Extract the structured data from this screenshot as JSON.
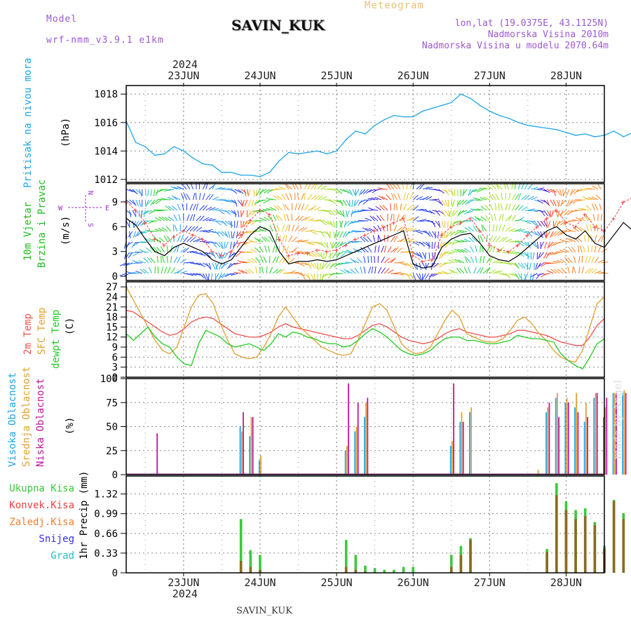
{
  "header": {
    "model_label": "Model",
    "model_name": "wrf-nmm_v3.9.1 e1km",
    "station": "SAVIN_KUK",
    "product": "Meteogram",
    "lonlat": "lon,lat (19.0375E, 43.1125N)",
    "elevation": "Nadmorska Visina 2010m",
    "model_elevation": "Nadmorska Visina u modelu 2070.64m",
    "watermark": "made by Angel",
    "bottom_station": "SAVIN_KUK"
  },
  "colors": {
    "pressure": "#1ea5e6",
    "wind_speed": "#000000",
    "wind_gust": "#f04040",
    "temp_2m": "#f05050",
    "temp_sfc": "#e0a030",
    "temp_dew": "#22cc22",
    "cloud_high": "#1ea5e6",
    "cloud_mid": "#e0a030",
    "cloud_low": "#c0169a",
    "precip_total": "#3cc83c",
    "precip_conv": "#f04040",
    "precip_fzr": "#f08030",
    "precip_snow": "#3030f0",
    "precip_grad": "#20c0c0",
    "header_purple": "#9b59d0",
    "header_orange": "#e8c27a"
  },
  "time_axis": {
    "year": "2024",
    "days": [
      "23JUN",
      "24JUN",
      "25JUN",
      "26JUN",
      "27JUN",
      "28JUN"
    ],
    "day_offsets_hours": [
      18,
      42,
      66,
      90,
      114,
      138
    ],
    "range_hours": [
      0,
      150
    ]
  },
  "chart_data": [
    {
      "id": "pressure",
      "type": "line",
      "ylabel": [
        "Pritisak na nivou mora",
        "(hPa)"
      ],
      "ylim": [
        1011.8,
        1018.6
      ],
      "yticks": [
        1012,
        1014,
        1016,
        1018
      ],
      "step_hours": 3,
      "series": [
        {
          "values": [
            1016.1,
            1014.6,
            1014.3,
            1013.7,
            1013.8,
            1014.3,
            1014.0,
            1013.5,
            1013.1,
            1013.0,
            1012.5,
            1012.5,
            1012.3,
            1012.3,
            1012.2,
            1012.5,
            1013.3,
            1013.9,
            1013.8,
            1013.9,
            1014.0,
            1013.8,
            1014.0,
            1014.8,
            1015.4,
            1015.2,
            1015.8,
            1016.2,
            1016.5,
            1016.4,
            1016.4,
            1016.8,
            1017.0,
            1017.2,
            1017.4,
            1018.0,
            1017.7,
            1017.2,
            1016.8,
            1016.5,
            1016.3,
            1016.0,
            1015.8,
            1015.7,
            1015.6,
            1015.5,
            1015.3,
            1015.1,
            1015.2,
            1015.0,
            1015.1,
            1015.4,
            1015.0,
            1015.3,
            1015.2,
            1015.1,
            1015.6,
            1016.5,
            1017.1,
            1017.0,
            1017.1,
            1017.0,
            1016.9,
            1016.8,
            1016.6,
            1016.5
          ]
        }
      ]
    },
    {
      "id": "wind",
      "type": "line",
      "ylabel": [
        "10m Vjetar",
        "Brzina i Pravac",
        "(m/s)"
      ],
      "compass": {
        "north": "N",
        "south": "S",
        "west": "W",
        "east": "E"
      },
      "ylim": [
        -0.5,
        11.2
      ],
      "yticks": [
        0,
        3,
        6,
        9
      ],
      "step_hours": 3,
      "series": [
        {
          "name": "speed",
          "values": [
            7.0,
            6.2,
            4.5,
            3.0,
            2.5,
            3.5,
            4.0,
            3.5,
            3.0,
            2.0,
            1.5,
            2.0,
            3.5,
            5.0,
            6.0,
            5.5,
            3.0,
            1.5,
            1.8,
            1.8,
            2.0,
            1.8,
            2.0,
            2.5,
            3.0,
            3.5,
            4.0,
            4.5,
            5.0,
            5.5,
            1.5,
            1.0,
            1.2,
            3.5,
            4.5,
            5.0,
            5.2,
            4.0,
            2.5,
            2.0,
            1.8,
            2.5,
            3.5,
            4.5,
            5.5,
            6.0,
            5.0,
            4.5,
            5.5,
            4.0,
            3.5,
            5.0,
            6.5,
            5.5,
            4.0,
            3.0,
            2.0,
            3.5,
            4.0,
            1.5,
            1.0,
            1.0,
            1.5,
            1.2,
            1.0,
            1.2
          ]
        },
        {
          "name": "gust",
          "values": [
            9.0,
            8.0,
            6.5,
            4.5,
            3.8,
            4.8,
            5.5,
            5.0,
            4.5,
            3.0,
            2.5,
            3.0,
            5.0,
            6.8,
            8.0,
            7.5,
            4.5,
            2.5,
            2.8,
            2.8,
            3.2,
            3.0,
            3.2,
            3.8,
            4.5,
            5.0,
            5.5,
            6.0,
            6.5,
            7.0,
            2.5,
            1.8,
            2.0,
            5.0,
            6.0,
            6.5,
            7.0,
            5.5,
            3.8,
            3.2,
            3.0,
            3.8,
            5.0,
            6.0,
            7.0,
            8.0,
            6.5,
            6.0,
            7.5,
            6.0,
            5.5,
            7.0,
            9.0,
            9.5,
            7.5,
            5.5,
            4.0,
            5.5,
            6.0,
            2.5,
            2.0,
            2.0,
            2.5,
            2.2,
            2.0,
            2.2
          ]
        }
      ]
    },
    {
      "id": "temperature",
      "type": "line",
      "ylabel": [
        "2m Temp",
        "SFC Temp",
        "dewpt Temp",
        "(C)"
      ],
      "ylim": [
        0,
        28.5
      ],
      "yticks": [
        0,
        3,
        6,
        9,
        12,
        15,
        18,
        21,
        24,
        27
      ],
      "step_hours": 3,
      "series": [
        {
          "name": "2m Temp",
          "values": [
            20.0,
            19.5,
            18.0,
            16.5,
            15.0,
            13.5,
            12.5,
            13.0,
            14.5,
            16.5,
            17.5,
            18.0,
            17.5,
            16.0,
            14.5,
            13.0,
            12.5,
            12.0,
            12.0,
            12.5,
            13.5,
            15.0,
            16.0,
            15.0,
            14.5,
            14.0,
            13.5,
            13.0,
            12.5,
            12.0,
            11.5,
            11.5,
            12.5,
            14.0,
            15.5,
            16.0,
            15.0,
            13.5,
            12.0,
            11.0,
            10.5,
            10.0,
            10.5,
            11.5,
            13.0,
            14.0,
            14.5,
            13.5,
            13.0,
            12.5,
            12.0,
            12.0,
            12.5,
            13.0,
            14.0,
            14.0,
            13.5,
            13.0,
            12.5,
            11.5,
            10.5,
            10.0,
            9.5,
            9.5,
            12.0,
            15.5,
            17.5
          ]
        },
        {
          "name": "SFC Temp",
          "values": [
            27.0,
            23.0,
            19.0,
            15.0,
            11.0,
            8.0,
            7.0,
            9.0,
            15.0,
            21.0,
            24.5,
            25.0,
            22.0,
            16.0,
            11.0,
            7.0,
            6.0,
            5.5,
            6.0,
            9.0,
            13.0,
            18.0,
            21.0,
            18.0,
            15.0,
            13.0,
            11.0,
            9.0,
            8.0,
            7.0,
            6.5,
            7.0,
            11.0,
            16.0,
            21.0,
            22.0,
            20.0,
            15.0,
            10.0,
            8.0,
            7.0,
            7.5,
            9.0,
            13.0,
            17.0,
            20.0,
            18.0,
            13.0,
            12.0,
            11.0,
            10.5,
            10.5,
            11.5,
            14.0,
            17.0,
            18.0,
            16.0,
            13.0,
            11.0,
            8.0,
            6.0,
            5.0,
            4.5,
            8.0,
            15.0,
            22.0,
            24.0
          ]
        },
        {
          "name": "dewpt Temp",
          "values": [
            13.0,
            11.0,
            13.0,
            15.0,
            12.0,
            10.0,
            9.0,
            6.0,
            4.0,
            3.5,
            10.0,
            14.0,
            13.0,
            12.0,
            10.0,
            9.0,
            9.5,
            10.0,
            9.0,
            8.0,
            10.0,
            13.0,
            12.0,
            13.5,
            13.0,
            12.0,
            11.5,
            10.5,
            10.0,
            10.0,
            9.0,
            9.5,
            11.0,
            13.0,
            14.5,
            13.5,
            12.0,
            10.0,
            8.0,
            7.0,
            6.5,
            7.0,
            8.0,
            10.0,
            11.5,
            12.0,
            12.0,
            11.0,
            11.0,
            10.5,
            10.0,
            10.0,
            10.5,
            11.0,
            12.5,
            12.0,
            11.5,
            11.5,
            11.0,
            10.5,
            7.0,
            5.0,
            3.5,
            2.5,
            6.0,
            10.0,
            11.5
          ]
        }
      ]
    },
    {
      "id": "cloud",
      "type": "bar",
      "ylabel": [
        "Visoka Oblacnost",
        "Srednja Oblacnost",
        "Niska Oblacnost",
        "(%)"
      ],
      "ylim": [
        0,
        100
      ],
      "yticks": [
        0,
        25,
        50,
        75,
        100
      ],
      "step_hours": 3,
      "series": [
        {
          "name": "Visoka",
          "values": [
            0,
            0,
            0,
            0,
            0,
            0,
            0,
            0,
            0,
            0,
            0,
            0,
            50,
            40,
            15,
            0,
            0,
            0,
            0,
            0,
            0,
            0,
            0,
            25,
            45,
            60,
            0,
            0,
            0,
            0,
            0,
            0,
            0,
            0,
            30,
            55,
            65,
            0,
            0,
            0,
            0,
            0,
            0,
            0,
            65,
            80,
            75,
            70,
            55,
            80,
            60,
            85,
            85,
            75,
            40,
            55,
            70,
            60,
            45,
            0,
            0,
            0,
            0,
            0,
            0,
            0
          ]
        },
        {
          "name": "Srednja",
          "values": [
            0,
            0,
            0,
            0,
            0,
            0,
            0,
            0,
            0,
            0,
            0,
            0,
            45,
            60,
            20,
            0,
            0,
            0,
            0,
            0,
            0,
            0,
            0,
            30,
            50,
            75,
            0,
            0,
            0,
            0,
            0,
            0,
            0,
            0,
            35,
            65,
            70,
            0,
            0,
            0,
            0,
            0,
            0,
            5,
            70,
            85,
            80,
            85,
            75,
            85,
            70,
            85,
            88,
            80,
            45,
            60,
            75,
            70,
            55,
            5,
            0,
            0,
            0,
            0,
            0,
            0
          ]
        },
        {
          "name": "Niska",
          "values": [
            0,
            0,
            0,
            43,
            0,
            0,
            0,
            0,
            0,
            0,
            0,
            0,
            65,
            60,
            0,
            0,
            0,
            0,
            0,
            0,
            0,
            0,
            0,
            95,
            75,
            80,
            0,
            0,
            0,
            0,
            0,
            0,
            0,
            0,
            95,
            55,
            0,
            0,
            0,
            0,
            0,
            0,
            0,
            0,
            75,
            60,
            75,
            65,
            60,
            85,
            80,
            85,
            85,
            80,
            75,
            80,
            75,
            65,
            50,
            0,
            0,
            0,
            0,
            0,
            80,
            60
          ]
        }
      ]
    },
    {
      "id": "precip",
      "type": "bar",
      "ylabel": [
        "1hr Precip (mm)"
      ],
      "legend": [
        "Ukupna Kisa",
        "Konvek.Kisa",
        "Zaledj.Kisa",
        "Snijeg",
        "Grad"
      ],
      "ylim": [
        0,
        1.62
      ],
      "yticks": [
        0,
        0.33,
        0.66,
        0.99,
        1.32
      ],
      "step_hours": 3,
      "series": [
        {
          "name": "Ukupna Kisa",
          "values": [
            0,
            0,
            0,
            0,
            0,
            0,
            0,
            0,
            0,
            0,
            0,
            0,
            0.9,
            0.38,
            0.3,
            0,
            0,
            0,
            0,
            0,
            0,
            0,
            0,
            0.55,
            0.3,
            0.12,
            0.08,
            0.05,
            0.05,
            0.1,
            0.1,
            0,
            0,
            0,
            0.3,
            0.45,
            0.58,
            0,
            0,
            0,
            0,
            0,
            0,
            0,
            0.4,
            1.5,
            1.2,
            1.05,
            1.08,
            0.85,
            0.45,
            1.22,
            1.0,
            0.3,
            0.25,
            0.5,
            0.78,
            0.45,
            0.1,
            0,
            0,
            0,
            0,
            0,
            0,
            0
          ]
        },
        {
          "name": "Konvek.Kisa",
          "values": [
            0,
            0,
            0,
            0,
            0,
            0,
            0,
            0,
            0,
            0,
            0,
            0,
            0.2,
            0.1,
            0.05,
            0,
            0,
            0,
            0,
            0,
            0,
            0,
            0,
            0.1,
            0.05,
            0.02,
            0,
            0,
            0,
            0,
            0,
            0,
            0,
            0,
            0.1,
            0.3,
            0.55,
            0,
            0,
            0,
            0,
            0,
            0,
            0,
            0.35,
            1.3,
            1.05,
            0.9,
            0.95,
            0.8,
            0.4,
            1.2,
            0.9,
            0.28,
            0.2,
            0.45,
            0.7,
            0.4,
            0.05,
            0,
            0,
            0,
            0,
            0,
            0,
            0
          ]
        }
      ]
    }
  ]
}
